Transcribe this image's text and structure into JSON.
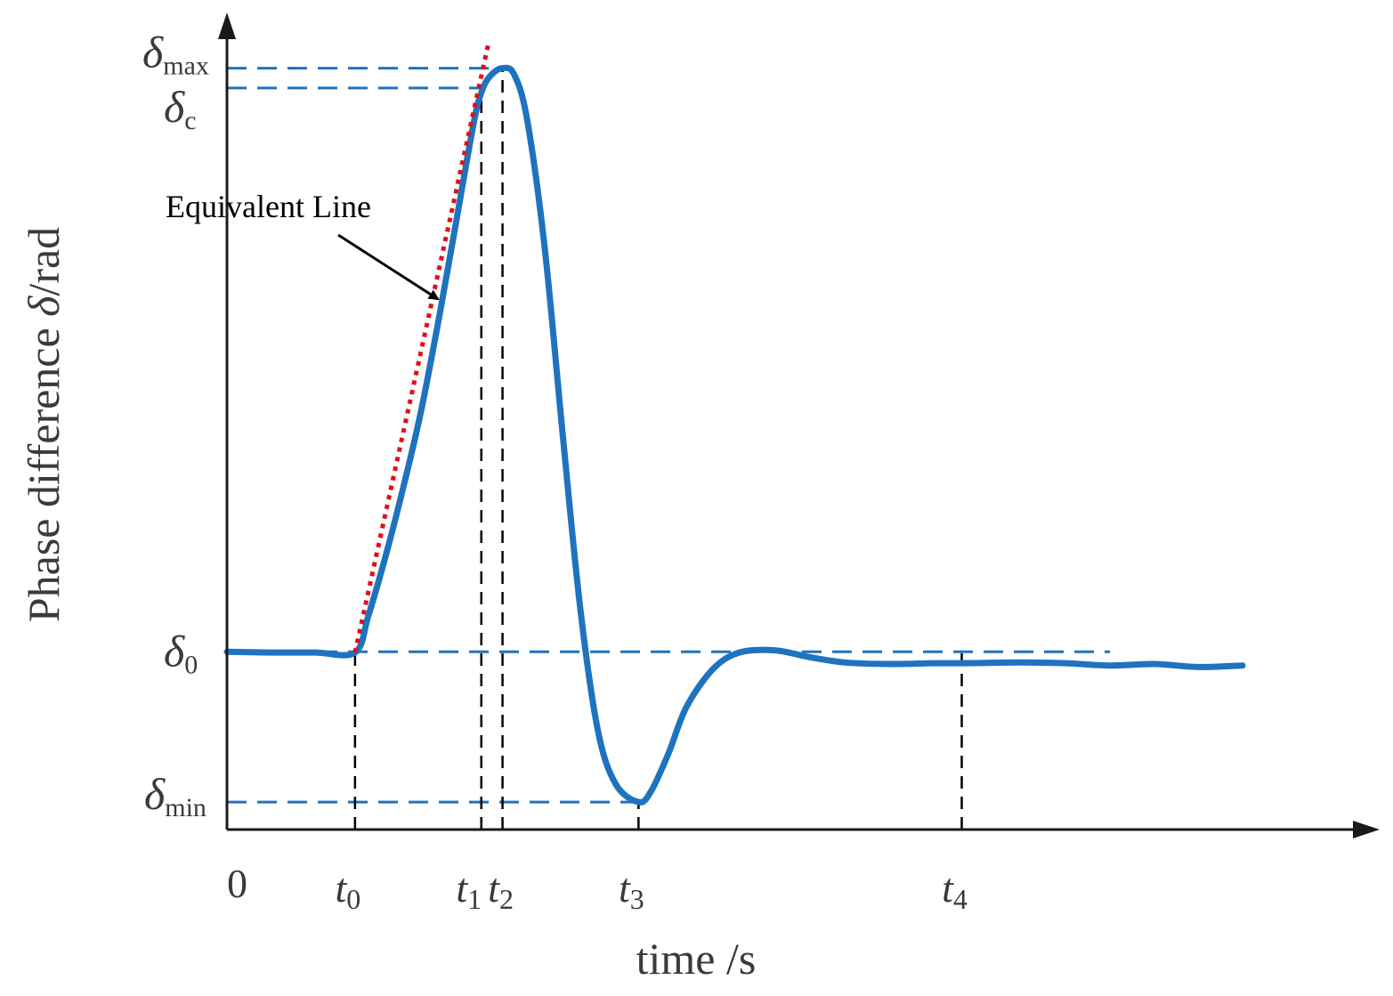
{
  "chart_data": {
    "type": "line",
    "xlabel_prefix": "time ",
    "xlabel_unit": "/s",
    "ylabel_prefix": "Phase difference ",
    "ylabel_symbol": "δ",
    "ylabel_unit": "/rad",
    "origin_label": "0",
    "annotation": "Equivalent Line",
    "x_ticks": [
      {
        "base": "t",
        "sub": "0",
        "x": 0.145
      },
      {
        "base": "t",
        "sub": "1",
        "x": 0.288
      },
      {
        "base": "t",
        "sub": "2",
        "x": 0.312
      },
      {
        "base": "t",
        "sub": "3",
        "x": 0.466
      },
      {
        "base": "t",
        "sub": "4",
        "x": 0.832
      }
    ],
    "y_levels": [
      {
        "base": "δ",
        "sub": "max",
        "y": 0.998
      },
      {
        "base": "δ",
        "sub": "c",
        "y": 0.972
      },
      {
        "base": "δ",
        "sub": "0",
        "y": 0.233
      },
      {
        "base": "δ",
        "sub": "min",
        "y": 0.036
      }
    ],
    "xlim": [
      0,
      1.28
    ],
    "ylim": [
      0,
      1.05
    ],
    "series": [
      {
        "color": "#1e73be",
        "x": [
          0.0,
          0.05,
          0.1,
          0.145,
          0.16,
          0.18,
          0.2,
          0.22,
          0.24,
          0.26,
          0.28,
          0.29,
          0.3,
          0.312,
          0.325,
          0.34,
          0.36,
          0.38,
          0.4,
          0.42,
          0.44,
          0.466,
          0.48,
          0.5,
          0.52,
          0.55,
          0.58,
          0.62,
          0.66,
          0.7,
          0.75,
          0.8,
          0.832,
          0.9,
          0.95,
          1.0,
          1.05,
          1.1,
          1.15
        ],
        "y": [
          0.233,
          0.232,
          0.232,
          0.232,
          0.28,
          0.36,
          0.45,
          0.55,
          0.67,
          0.8,
          0.93,
          0.972,
          0.99,
          0.998,
          0.99,
          0.93,
          0.76,
          0.52,
          0.29,
          0.13,
          0.06,
          0.036,
          0.05,
          0.1,
          0.16,
          0.21,
          0.232,
          0.235,
          0.226,
          0.219,
          0.217,
          0.218,
          0.218,
          0.219,
          0.218,
          0.215,
          0.217,
          0.213,
          0.215
        ]
      },
      {
        "color": "#e0101a",
        "style": "dotted",
        "x": [
          0.145,
          0.296
        ],
        "y": [
          0.232,
          1.03
        ]
      }
    ],
    "grid": false
  }
}
